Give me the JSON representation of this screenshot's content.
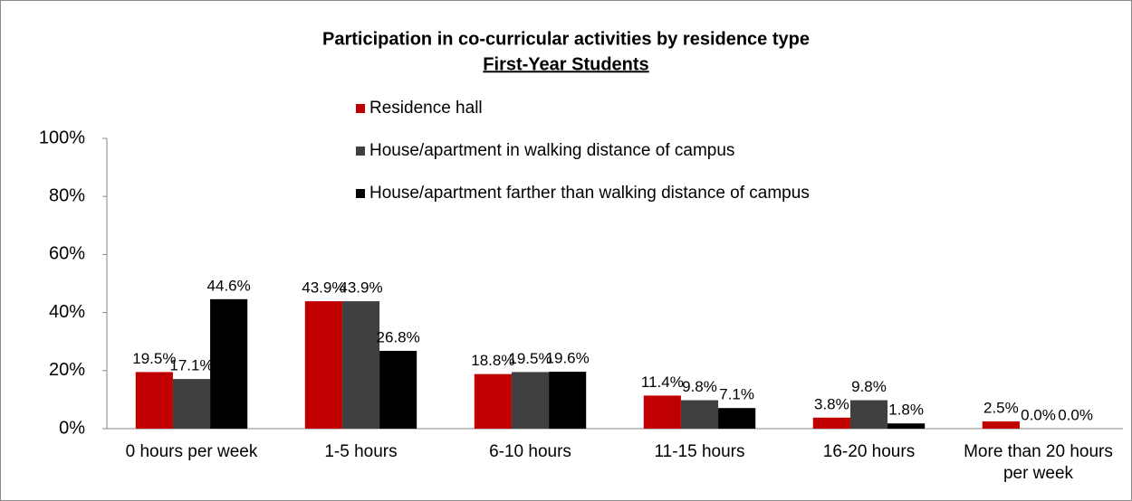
{
  "chart_data": {
    "type": "bar",
    "title": "Participation in co-curricular activities by residence type",
    "subtitle": "First-Year Students",
    "categories": [
      "0 hours per week",
      "1-5 hours",
      "6-10 hours",
      "11-15 hours",
      "16-20 hours",
      "More than 20 hours per week"
    ],
    "series": [
      {
        "name": "Residence hall",
        "color": "#c00000",
        "values": [
          19.5,
          43.9,
          18.8,
          11.4,
          3.8,
          2.5
        ],
        "value_labels": [
          "19.5%",
          "43.9%",
          "18.8%",
          "11.4%",
          "3.8%",
          "2.5%"
        ]
      },
      {
        "name": "House/apartment in walking distance of campus",
        "color": "#404040",
        "values": [
          17.1,
          43.9,
          19.5,
          9.8,
          9.8,
          0.0
        ],
        "value_labels": [
          "17.1%",
          "43.9%",
          "19.5%",
          "9.8%",
          "9.8%",
          "0.0%"
        ]
      },
      {
        "name": "House/apartment farther than walking distance of campus",
        "color": "#000000",
        "values": [
          44.6,
          26.8,
          19.6,
          7.1,
          1.8,
          0.0
        ],
        "value_labels": [
          "44.6%",
          "26.8%",
          "19.6%",
          "7.1%",
          "1.8%",
          "0.0%"
        ]
      }
    ],
    "ylim": [
      0,
      100
    ],
    "yticks": [
      {
        "value": 0,
        "label": "0%"
      },
      {
        "value": 20,
        "label": "20%"
      },
      {
        "value": 40,
        "label": "40%"
      },
      {
        "value": 60,
        "label": "60%"
      },
      {
        "value": 80,
        "label": "80%"
      },
      {
        "value": 100,
        "label": "100%"
      }
    ],
    "grid": false,
    "legend": "top"
  }
}
